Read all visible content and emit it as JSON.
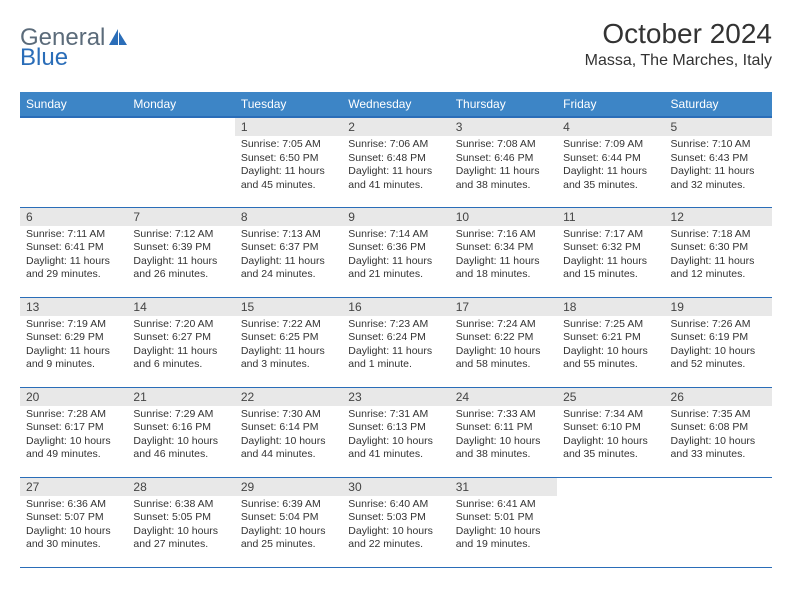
{
  "logo": {
    "text1": "General",
    "text2": "Blue"
  },
  "title": "October 2024",
  "location": "Massa, The Marches, Italy",
  "colors": {
    "header_bg": "#3d85c6",
    "header_border": "#2a6db8",
    "daynum_bg": "#e8e8e8",
    "text": "#333333",
    "logo_gray": "#5b6b7a",
    "logo_blue": "#2a6db8"
  },
  "weekdays": [
    "Sunday",
    "Monday",
    "Tuesday",
    "Wednesday",
    "Thursday",
    "Friday",
    "Saturday"
  ],
  "layout": {
    "first_weekday_index": 2,
    "days_in_month": 31
  },
  "days": [
    {
      "n": 1,
      "sunrise": "7:05 AM",
      "sunset": "6:50 PM",
      "daylight": "11 hours and 45 minutes."
    },
    {
      "n": 2,
      "sunrise": "7:06 AM",
      "sunset": "6:48 PM",
      "daylight": "11 hours and 41 minutes."
    },
    {
      "n": 3,
      "sunrise": "7:08 AM",
      "sunset": "6:46 PM",
      "daylight": "11 hours and 38 minutes."
    },
    {
      "n": 4,
      "sunrise": "7:09 AM",
      "sunset": "6:44 PM",
      "daylight": "11 hours and 35 minutes."
    },
    {
      "n": 5,
      "sunrise": "7:10 AM",
      "sunset": "6:43 PM",
      "daylight": "11 hours and 32 minutes."
    },
    {
      "n": 6,
      "sunrise": "7:11 AM",
      "sunset": "6:41 PM",
      "daylight": "11 hours and 29 minutes."
    },
    {
      "n": 7,
      "sunrise": "7:12 AM",
      "sunset": "6:39 PM",
      "daylight": "11 hours and 26 minutes."
    },
    {
      "n": 8,
      "sunrise": "7:13 AM",
      "sunset": "6:37 PM",
      "daylight": "11 hours and 24 minutes."
    },
    {
      "n": 9,
      "sunrise": "7:14 AM",
      "sunset": "6:36 PM",
      "daylight": "11 hours and 21 minutes."
    },
    {
      "n": 10,
      "sunrise": "7:16 AM",
      "sunset": "6:34 PM",
      "daylight": "11 hours and 18 minutes."
    },
    {
      "n": 11,
      "sunrise": "7:17 AM",
      "sunset": "6:32 PM",
      "daylight": "11 hours and 15 minutes."
    },
    {
      "n": 12,
      "sunrise": "7:18 AM",
      "sunset": "6:30 PM",
      "daylight": "11 hours and 12 minutes."
    },
    {
      "n": 13,
      "sunrise": "7:19 AM",
      "sunset": "6:29 PM",
      "daylight": "11 hours and 9 minutes."
    },
    {
      "n": 14,
      "sunrise": "7:20 AM",
      "sunset": "6:27 PM",
      "daylight": "11 hours and 6 minutes."
    },
    {
      "n": 15,
      "sunrise": "7:22 AM",
      "sunset": "6:25 PM",
      "daylight": "11 hours and 3 minutes."
    },
    {
      "n": 16,
      "sunrise": "7:23 AM",
      "sunset": "6:24 PM",
      "daylight": "11 hours and 1 minute."
    },
    {
      "n": 17,
      "sunrise": "7:24 AM",
      "sunset": "6:22 PM",
      "daylight": "10 hours and 58 minutes."
    },
    {
      "n": 18,
      "sunrise": "7:25 AM",
      "sunset": "6:21 PM",
      "daylight": "10 hours and 55 minutes."
    },
    {
      "n": 19,
      "sunrise": "7:26 AM",
      "sunset": "6:19 PM",
      "daylight": "10 hours and 52 minutes."
    },
    {
      "n": 20,
      "sunrise": "7:28 AM",
      "sunset": "6:17 PM",
      "daylight": "10 hours and 49 minutes."
    },
    {
      "n": 21,
      "sunrise": "7:29 AM",
      "sunset": "6:16 PM",
      "daylight": "10 hours and 46 minutes."
    },
    {
      "n": 22,
      "sunrise": "7:30 AM",
      "sunset": "6:14 PM",
      "daylight": "10 hours and 44 minutes."
    },
    {
      "n": 23,
      "sunrise": "7:31 AM",
      "sunset": "6:13 PM",
      "daylight": "10 hours and 41 minutes."
    },
    {
      "n": 24,
      "sunrise": "7:33 AM",
      "sunset": "6:11 PM",
      "daylight": "10 hours and 38 minutes."
    },
    {
      "n": 25,
      "sunrise": "7:34 AM",
      "sunset": "6:10 PM",
      "daylight": "10 hours and 35 minutes."
    },
    {
      "n": 26,
      "sunrise": "7:35 AM",
      "sunset": "6:08 PM",
      "daylight": "10 hours and 33 minutes."
    },
    {
      "n": 27,
      "sunrise": "6:36 AM",
      "sunset": "5:07 PM",
      "daylight": "10 hours and 30 minutes."
    },
    {
      "n": 28,
      "sunrise": "6:38 AM",
      "sunset": "5:05 PM",
      "daylight": "10 hours and 27 minutes."
    },
    {
      "n": 29,
      "sunrise": "6:39 AM",
      "sunset": "5:04 PM",
      "daylight": "10 hours and 25 minutes."
    },
    {
      "n": 30,
      "sunrise": "6:40 AM",
      "sunset": "5:03 PM",
      "daylight": "10 hours and 22 minutes."
    },
    {
      "n": 31,
      "sunrise": "6:41 AM",
      "sunset": "5:01 PM",
      "daylight": "10 hours and 19 minutes."
    }
  ],
  "labels": {
    "sunrise": "Sunrise:",
    "sunset": "Sunset:",
    "daylight": "Daylight:"
  }
}
